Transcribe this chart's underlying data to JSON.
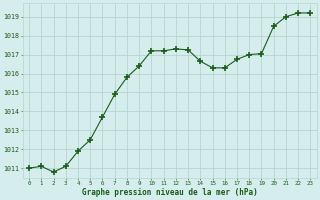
{
  "x": [
    0,
    1,
    2,
    3,
    4,
    5,
    6,
    7,
    8,
    9,
    10,
    11,
    12,
    13,
    14,
    15,
    16,
    17,
    18,
    19,
    20,
    21,
    22,
    23
  ],
  "y": [
    1011.0,
    1011.1,
    1010.8,
    1011.1,
    1011.9,
    1012.5,
    1013.7,
    1014.9,
    1015.8,
    1016.4,
    1017.2,
    1017.2,
    1017.3,
    1017.25,
    1016.65,
    1016.3,
    1016.3,
    1016.75,
    1017.0,
    1017.05,
    1018.5,
    1019.0,
    1019.2,
    1019.2
  ],
  "line_color": "#1a5c1a",
  "marker_color": "#1a5c1a",
  "bg_color": "#d5eeed",
  "grid_color": "#b8d4d0",
  "xlabel": "Graphe pression niveau de la mer (hPa)",
  "xlabel_color": "#1a5c1a",
  "tick_label_color": "#1a5c1a",
  "ylim": [
    1010.5,
    1019.7
  ],
  "yticks": [
    1011,
    1012,
    1013,
    1014,
    1015,
    1016,
    1017,
    1018,
    1019
  ],
  "xticks": [
    0,
    1,
    2,
    3,
    4,
    5,
    6,
    7,
    8,
    9,
    10,
    11,
    12,
    13,
    14,
    15,
    16,
    17,
    18,
    19,
    20,
    21,
    22,
    23
  ],
  "xlim": [
    -0.5,
    23.5
  ]
}
